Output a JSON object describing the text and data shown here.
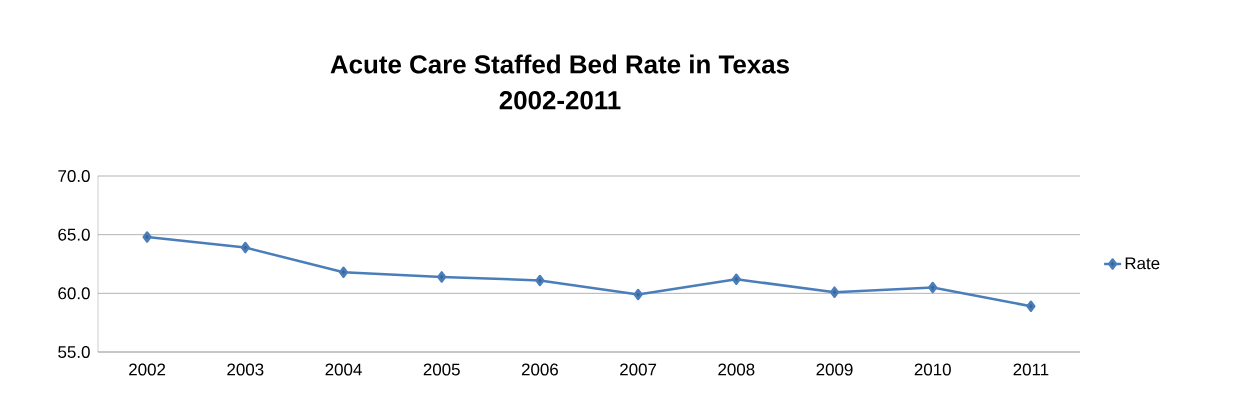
{
  "chart_data": {
    "type": "line",
    "title": "Acute Care Staffed Bed Rate in Texas\n2002-2011",
    "categories": [
      "2002",
      "2003",
      "2004",
      "2005",
      "2006",
      "2007",
      "2008",
      "2009",
      "2010",
      "2011"
    ],
    "series": [
      {
        "name": "Rate",
        "color": "#4a7ebb",
        "values": [
          64.8,
          63.9,
          61.8,
          61.4,
          61.1,
          59.9,
          61.2,
          60.1,
          60.5,
          58.9
        ]
      }
    ],
    "ylim": [
      55,
      70
    ],
    "yticks": [
      {
        "value": 55,
        "label": "55.0"
      },
      {
        "value": 60,
        "label": "60.0"
      },
      {
        "value": 65,
        "label": "65.0"
      },
      {
        "value": 70,
        "label": "70.0"
      }
    ],
    "grid": "y",
    "legend": "right",
    "marker": "diamond",
    "line_style": "solid"
  }
}
